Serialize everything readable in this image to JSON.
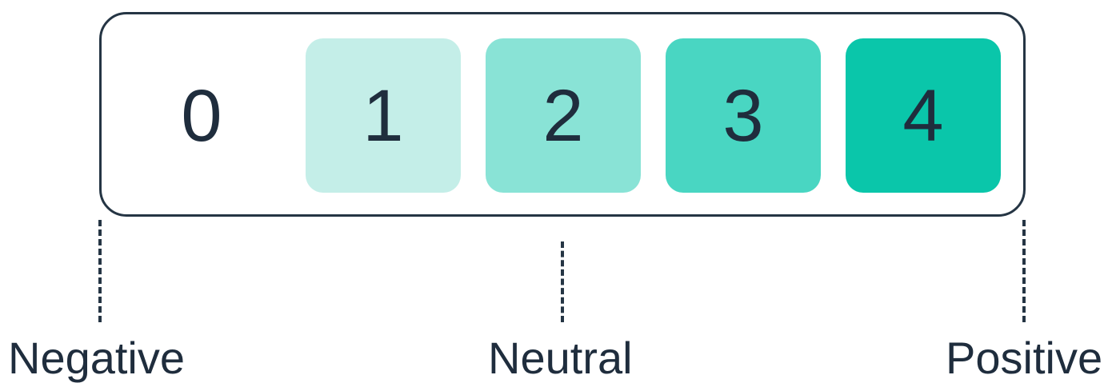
{
  "scale": {
    "cells": [
      {
        "label": "0",
        "fill": "#ffffff"
      },
      {
        "label": "1",
        "fill": "#c4eee8"
      },
      {
        "label": "2",
        "fill": "#89e3d6"
      },
      {
        "label": "3",
        "fill": "#49d6c2"
      },
      {
        "label": "4",
        "fill": "#0ac6aa"
      }
    ]
  },
  "labels": {
    "negative": "Negative",
    "neutral": "Neutral",
    "positive": "Positive"
  },
  "colors": {
    "stroke": "#253544",
    "text": "#1f2d3d"
  }
}
